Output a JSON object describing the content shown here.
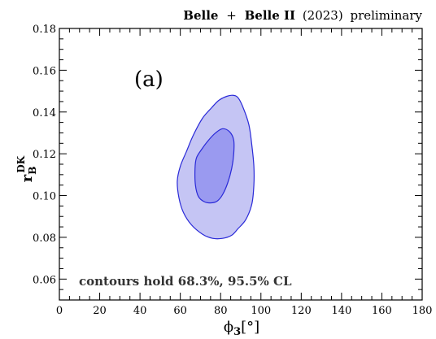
{
  "chart_data": {
    "type": "contour",
    "title": "Belle + Belle II (2023) preliminary",
    "title_parts": {
      "belle": "Belle",
      "plus": "+",
      "belle2": "Belle II",
      "year": "(2023)",
      "status": "preliminary"
    },
    "panel_label": "(a)",
    "annotation": "contours hold 68.3%, 95.5% CL",
    "xlabel": "ϕ₃[°]",
    "xlabel_parts": {
      "symbol": "ϕ",
      "sub": "3",
      "unit": "[°]"
    },
    "ylabel": "r_B^DK",
    "ylabel_parts": {
      "symbol": "r",
      "sub": "B",
      "sup": "DK"
    },
    "xlim": [
      0,
      180
    ],
    "ylim": [
      0.05,
      0.18
    ],
    "x_ticks": [
      "0",
      "20",
      "40",
      "60",
      "80",
      "100",
      "120",
      "140",
      "160",
      "180"
    ],
    "y_ticks": [
      "0.06",
      "0.08",
      "0.10",
      "0.12",
      "0.14",
      "0.16",
      "0.18"
    ],
    "x_tick_values": [
      0,
      20,
      40,
      60,
      80,
      100,
      120,
      140,
      160,
      180
    ],
    "y_tick_values": [
      0.06,
      0.08,
      0.1,
      0.12,
      0.14,
      0.16,
      0.18
    ],
    "series": [
      {
        "cl": "95.5%",
        "color": "#c5c5f4",
        "edge_color": "#2a2ad8",
        "points": [
          [
            58.5,
            0.107
          ],
          [
            59.3,
            0.099
          ],
          [
            61.5,
            0.092
          ],
          [
            65.5,
            0.086
          ],
          [
            71.0,
            0.0815
          ],
          [
            76.0,
            0.0795
          ],
          [
            81.0,
            0.0795
          ],
          [
            85.5,
            0.081
          ],
          [
            88.5,
            0.084
          ],
          [
            92.5,
            0.0885
          ],
          [
            95.5,
            0.096
          ],
          [
            96.5,
            0.105
          ],
          [
            96.5,
            0.114
          ],
          [
            95.5,
            0.124
          ],
          [
            94.0,
            0.134
          ],
          [
            91.0,
            0.1425
          ],
          [
            88.5,
            0.147
          ],
          [
            86.0,
            0.148
          ],
          [
            83.0,
            0.1475
          ],
          [
            79.0,
            0.1455
          ],
          [
            75.5,
            0.142
          ],
          [
            71.0,
            0.137
          ],
          [
            66.5,
            0.129
          ],
          [
            63.0,
            0.121
          ],
          [
            60.0,
            0.114
          ]
        ]
      },
      {
        "cl": "68.3%",
        "color": "#9a9af0",
        "edge_color": "#2a2ad8",
        "points": [
          [
            67.3,
            0.113
          ],
          [
            67.5,
            0.105
          ],
          [
            69.0,
            0.0995
          ],
          [
            72.0,
            0.097
          ],
          [
            75.5,
            0.0965
          ],
          [
            78.5,
            0.0975
          ],
          [
            81.0,
            0.1005
          ],
          [
            83.5,
            0.106
          ],
          [
            85.5,
            0.113
          ],
          [
            86.5,
            0.12
          ],
          [
            86.5,
            0.1265
          ],
          [
            84.5,
            0.1305
          ],
          [
            81.0,
            0.132
          ],
          [
            77.5,
            0.13
          ],
          [
            74.0,
            0.1265
          ],
          [
            70.5,
            0.122
          ],
          [
            68.0,
            0.118
          ]
        ]
      }
    ],
    "grid": false
  }
}
